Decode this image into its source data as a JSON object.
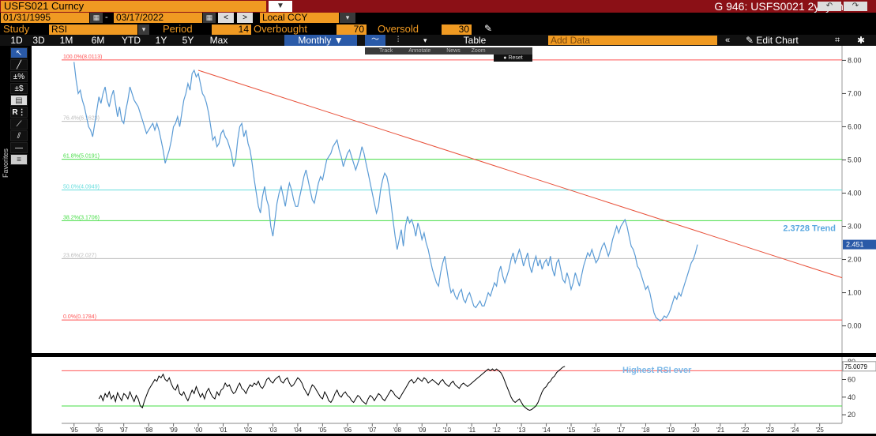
{
  "header": {
    "ticker": "USFS021 Curncy",
    "chart_title": "G 946: USFS0021 2y1y month",
    "date_start": "01/31/1995",
    "date_end": "03/17/2022",
    "currency": "Local CCY"
  },
  "study_bar": {
    "study_label": "Study",
    "study_value": "RSI",
    "period_label": "Period",
    "period_value": "14",
    "overbought_label": "Overbought",
    "overbought_value": "70",
    "oversold_label": "Oversold",
    "oversold_value": "30"
  },
  "range_bar": {
    "ranges": [
      "1D",
      "3D",
      "1M",
      "6M",
      "YTD",
      "1Y",
      "5Y",
      "Max"
    ],
    "frequency": "Monthly",
    "table_label": "Table",
    "add_data_placeholder": "Add Data",
    "edit_chart_label": "Edit Chart"
  },
  "mini_toolbar": {
    "track": "Track",
    "annotate": "Annotate",
    "news": "News",
    "zoom": "Zoom",
    "reset": "Reset"
  },
  "toolbar": {
    "favorites_label": "Favorites"
  },
  "colors": {
    "header_bg": "#8b1016",
    "accent_orange": "#f09a22",
    "price_line": "#5b9bd5",
    "rsi_line": "#000000",
    "trend_line": "#e8513a"
  },
  "chart_data": [
    {
      "type": "line",
      "x_start": 1995.0,
      "x_step_years": 0.0833333,
      "xlim": [
        1994.5,
        2025.9
      ],
      "ylim": [
        -0.7,
        8.2
      ],
      "y_ticks": [
        "0.00",
        "1.00",
        "2.00",
        "3.00",
        "4.00",
        "5.00",
        "6.00",
        "7.00",
        "8.00"
      ],
      "last_value_label": "2.451",
      "series": [
        {
          "values": [
            7.95,
            7.4,
            7.0,
            7.1,
            6.8,
            6.6,
            6.3,
            6.0,
            5.9,
            5.7,
            6.1,
            6.5,
            6.9,
            6.7,
            7.0,
            7.2,
            6.8,
            6.6,
            6.9,
            7.1,
            6.7,
            6.3,
            6.6,
            6.2,
            6.1,
            6.5,
            6.8,
            7.2,
            7.0,
            6.8,
            6.7,
            6.6,
            6.4,
            6.2,
            6.0,
            5.8,
            5.9,
            6.0,
            6.1,
            5.9,
            6.1,
            5.9,
            5.6,
            5.3,
            4.9,
            5.1,
            5.3,
            5.6,
            6.0,
            6.1,
            6.3,
            6.0,
            6.4,
            6.8,
            7.0,
            7.3,
            7.1,
            7.6,
            7.7,
            7.5,
            7.6,
            7.3,
            7.0,
            6.9,
            6.7,
            6.4,
            6.0,
            5.6,
            5.7,
            5.4,
            5.5,
            5.8,
            5.9,
            5.7,
            5.6,
            5.4,
            5.2,
            4.8,
            5.0,
            5.6,
            6.0,
            6.1,
            5.7,
            5.9,
            5.5,
            5.3,
            4.9,
            4.4,
            4.0,
            3.6,
            3.4,
            3.9,
            4.2,
            3.8,
            3.6,
            3.0,
            2.7,
            3.2,
            3.7,
            4.0,
            4.2,
            3.9,
            3.6,
            4.0,
            4.3,
            4.1,
            3.8,
            3.6,
            3.6,
            3.9,
            4.2,
            4.5,
            4.7,
            4.4,
            4.1,
            3.8,
            3.7,
            4.0,
            4.3,
            4.5,
            4.4,
            4.7,
            5.0,
            5.1,
            5.2,
            5.4,
            5.5,
            5.6,
            5.3,
            5.1,
            4.8,
            5.0,
            5.2,
            5.3,
            5.1,
            4.9,
            4.7,
            4.9,
            5.1,
            5.4,
            5.2,
            4.9,
            4.6,
            4.3,
            4.0,
            3.7,
            3.4,
            3.6,
            4.1,
            4.4,
            4.6,
            4.5,
            4.2,
            3.7,
            3.2,
            2.7,
            2.3,
            2.6,
            2.9,
            2.4,
            3.0,
            3.3,
            3.1,
            3.2,
            3.0,
            2.7,
            3.1,
            2.9,
            2.6,
            2.8,
            2.5,
            2.3,
            2.0,
            1.7,
            1.5,
            1.3,
            1.2,
            1.6,
            1.9,
            2.1,
            1.7,
            1.3,
            1.0,
            1.1,
            0.9,
            0.8,
            1.0,
            1.1,
            0.8,
            0.7,
            0.9,
            1.0,
            0.8,
            0.6,
            0.55,
            0.65,
            0.75,
            0.6,
            0.6,
            0.8,
            1.0,
            0.9,
            1.1,
            1.3,
            1.2,
            1.6,
            1.8,
            1.5,
            1.3,
            1.5,
            1.7,
            2.0,
            2.2,
            1.9,
            2.1,
            2.3,
            2.1,
            1.8,
            2.0,
            2.2,
            1.8,
            1.6,
            1.9,
            2.1,
            1.8,
            2.0,
            1.7,
            1.9,
            2.0,
            1.8,
            2.1,
            1.7,
            1.5,
            1.9,
            2.0,
            1.7,
            1.4,
            1.3,
            1.6,
            1.4,
            1.1,
            1.3,
            1.6,
            1.4,
            1.2,
            1.5,
            1.8,
            2.0,
            2.2,
            2.1,
            2.3,
            2.1,
            1.9,
            2.0,
            2.2,
            2.4,
            2.5,
            2.3,
            2.1,
            2.3,
            2.6,
            2.8,
            3.0,
            2.8,
            3.0,
            3.1,
            3.2,
            3.0,
            2.7,
            2.4,
            2.3,
            2.1,
            1.8,
            1.7,
            1.5,
            1.3,
            1.1,
            1.2,
            1.0,
            0.7,
            0.4,
            0.25,
            0.2,
            0.15,
            0.2,
            0.3,
            0.25,
            0.35,
            0.5,
            0.7,
            0.9,
            0.8,
            1.0,
            0.9,
            1.1,
            1.3,
            1.5,
            1.7,
            1.9,
            2.0,
            2.2,
            2.451
          ]
        }
      ],
      "fib_levels": [
        {
          "label": "100.0%(8.0113)",
          "value": 8.0113,
          "color": "#ff5555"
        },
        {
          "label": "76.4%(6.1623)",
          "value": 6.1623,
          "color": "#bbbbbb"
        },
        {
          "label": "61.8%(5.0191)",
          "value": 5.0191,
          "color": "#44dd44"
        },
        {
          "label": "50.0%(4.0949)",
          "value": 4.0949,
          "color": "#66dddd"
        },
        {
          "label": "38.2%(3.1706)",
          "value": 3.1706,
          "color": "#44dd44"
        },
        {
          "label": "23.6%(2.027)",
          "value": 2.027,
          "color": "#bbbbbb"
        },
        {
          "label": "0.0%(0.1784)",
          "value": 0.1784,
          "color": "#ff5555"
        }
      ],
      "trend_line": {
        "x0": 2000.0,
        "y0": 7.7,
        "x1": 2025.9,
        "y1": 1.45,
        "label": "2.3728 Trend"
      }
    },
    {
      "type": "line",
      "x_start": 1996.0,
      "x_step_years": 0.0833333,
      "ylim": [
        12,
        82
      ],
      "y_ticks": [
        "20",
        "40",
        "60",
        "80"
      ],
      "last_value_label": "75.0079",
      "annotation": "Highest RSI ever",
      "overbought": 70,
      "oversold": 30,
      "series": [
        {
          "values": [
            38,
            42,
            36,
            44,
            40,
            46,
            38,
            42,
            35,
            45,
            40,
            36,
            44,
            42,
            38,
            46,
            40,
            35,
            42,
            38,
            30,
            28,
            36,
            42,
            48,
            52,
            56,
            60,
            58,
            64,
            62,
            66,
            60,
            58,
            62,
            55,
            50,
            48,
            54,
            44,
            42,
            46,
            40,
            36,
            42,
            48,
            44,
            52,
            46,
            40,
            44,
            38,
            46,
            50,
            44,
            40,
            38,
            46,
            42,
            48,
            50,
            56,
            52,
            54,
            48,
            44,
            46,
            52,
            56,
            50,
            48,
            44,
            50,
            54,
            52,
            56,
            54,
            58,
            52,
            50,
            54,
            60,
            62,
            58,
            56,
            60,
            62,
            64,
            58,
            56,
            60,
            62,
            56,
            52,
            54,
            58,
            62,
            60,
            56,
            50,
            46,
            42,
            48,
            54,
            52,
            48,
            44,
            40,
            38,
            46,
            42,
            36,
            34,
            38,
            44,
            48,
            42,
            40,
            44,
            46,
            42,
            40,
            36,
            34,
            38,
            42,
            40,
            36,
            34,
            32,
            38,
            42,
            40,
            36,
            40,
            44,
            42,
            38,
            36,
            40,
            44,
            48,
            46,
            42,
            40,
            38,
            42,
            46,
            50,
            54,
            58,
            60,
            56,
            58,
            62,
            60,
            58,
            62,
            60,
            56,
            58,
            60,
            58,
            56,
            54,
            58,
            60,
            56,
            54,
            52,
            56,
            58,
            54,
            52,
            50,
            54,
            56,
            54,
            52,
            54,
            56,
            58,
            60,
            62,
            64,
            66,
            68,
            70,
            72,
            70,
            72,
            70,
            72,
            70,
            68,
            64,
            58,
            52,
            46,
            40,
            36,
            34,
            36,
            38,
            34,
            30,
            28,
            26,
            25,
            26,
            28,
            30,
            34,
            40,
            46,
            50,
            52,
            56,
            58,
            62,
            64,
            68,
            70,
            72,
            74,
            75
          ]
        }
      ]
    }
  ],
  "x_tick_labels": [
    "'95",
    "'96",
    "'97",
    "'98",
    "'99",
    "'00",
    "'01",
    "'02",
    "'03",
    "'04",
    "'05",
    "'06",
    "'07",
    "'08",
    "'09",
    "'10",
    "'11",
    "'12",
    "'13",
    "'14",
    "'15",
    "'16",
    "'17",
    "'18",
    "'19",
    "'20",
    "'21",
    "'22",
    "'23",
    "'24",
    "'25"
  ]
}
